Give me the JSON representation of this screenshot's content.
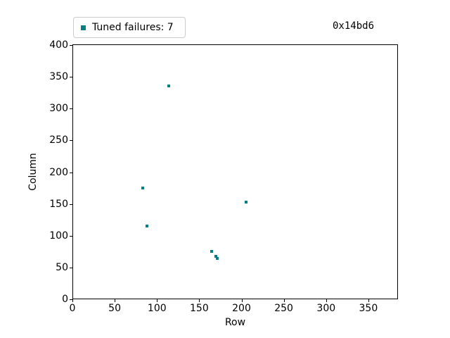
{
  "figure": {
    "title": "0x14bd6",
    "xlabel": "Row",
    "ylabel": "Column",
    "legend_label": "Tuned failures: 7",
    "marker_color": "#008080",
    "legend_border_color": "#cccccc",
    "failure_count": 7
  },
  "chart_data": {
    "type": "scatter",
    "title": "0x14bd6",
    "xlabel": "Row",
    "ylabel": "Column",
    "xlim": [
      0,
      385
    ],
    "ylim": [
      0,
      401
    ],
    "xticks": [
      0,
      50,
      100,
      150,
      200,
      250,
      300,
      350
    ],
    "yticks": [
      0,
      50,
      100,
      150,
      200,
      250,
      300,
      350,
      400
    ],
    "grid": false,
    "legend_position": "upper-left-outside",
    "series": [
      {
        "name": "Tuned failures: 7",
        "color": "#008080",
        "marker": "square",
        "points": [
          {
            "x": 114,
            "y": 336
          },
          {
            "x": 83,
            "y": 175
          },
          {
            "x": 88,
            "y": 115
          },
          {
            "x": 165,
            "y": 75
          },
          {
            "x": 170,
            "y": 68
          },
          {
            "x": 171,
            "y": 64
          },
          {
            "x": 205,
            "y": 153
          }
        ]
      }
    ]
  }
}
